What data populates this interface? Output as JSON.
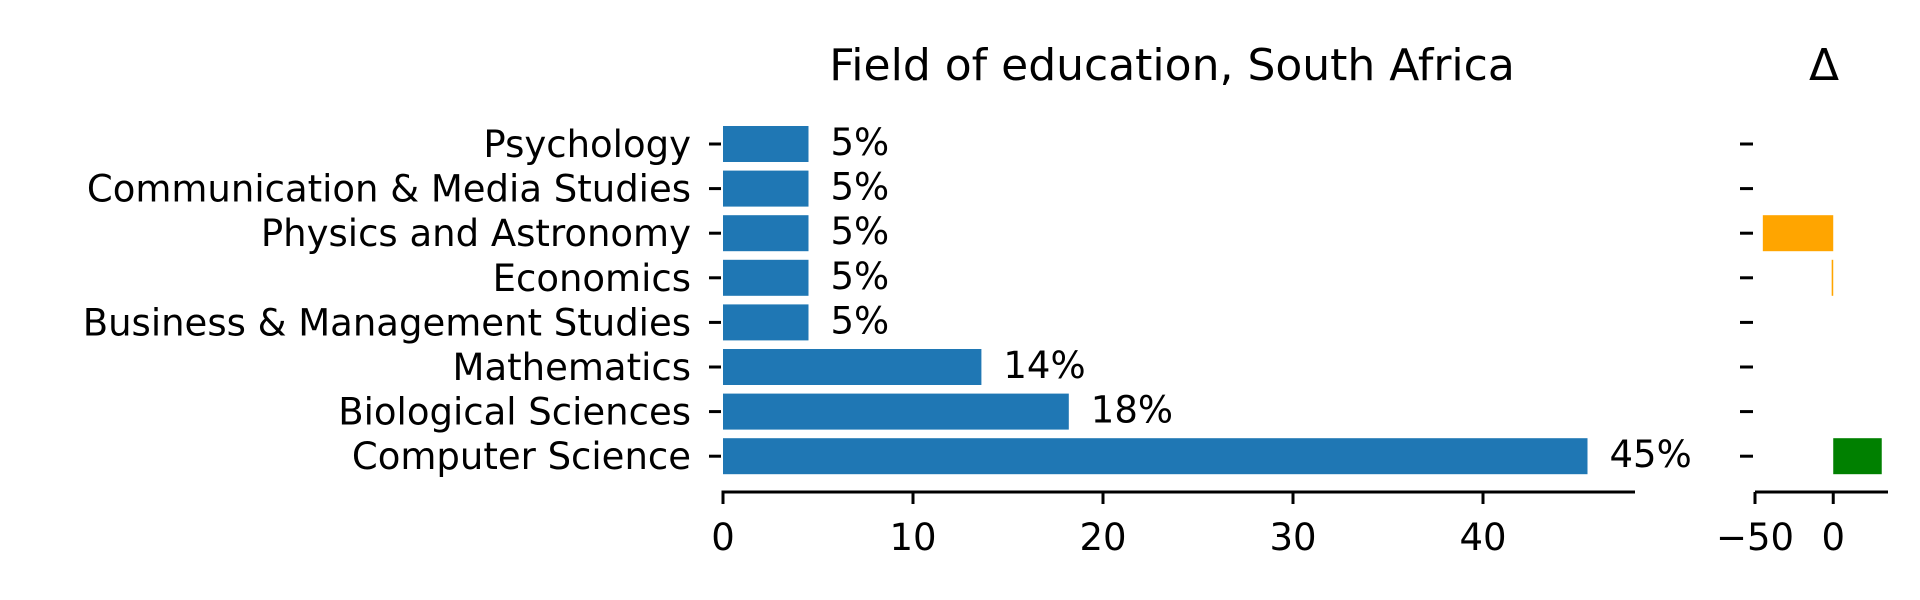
{
  "chart_data": [
    {
      "type": "bar",
      "orientation": "horizontal",
      "title": "Field of education, South Africa",
      "xlabel": "",
      "ylabel": "",
      "categories": [
        "Psychology",
        "Communication & Media Studies",
        "Physics and Astronomy",
        "Economics",
        "Business & Management Studies",
        "Mathematics",
        "Biological Sciences",
        "Computer Science"
      ],
      "values": [
        4.5,
        4.5,
        4.5,
        4.5,
        4.5,
        13.6,
        18.2,
        45.5
      ],
      "value_labels": [
        "5%",
        "5%",
        "5%",
        "5%",
        "5%",
        "14%",
        "18%",
        "45%"
      ],
      "xlim": [
        0,
        48
      ],
      "xticks": [
        0,
        10,
        20,
        30,
        40
      ],
      "bar_color": "#1f77b4",
      "grid": false
    },
    {
      "type": "bar",
      "orientation": "horizontal",
      "title": "Δ",
      "categories": [
        "Psychology",
        "Communication & Media Studies",
        "Physics and Astronomy",
        "Economics",
        "Business & Management Studies",
        "Mathematics",
        "Biological Sciences",
        "Computer Science"
      ],
      "values": [
        0,
        0,
        -45,
        -1,
        0,
        0,
        0,
        31
      ],
      "xlim": [
        -50,
        35
      ],
      "xticks": [
        -50,
        0
      ],
      "xtick_labels": [
        "−50",
        "0"
      ],
      "colors": {
        "negative": "#ffa500",
        "positive": "#008000"
      },
      "grid": false
    }
  ]
}
